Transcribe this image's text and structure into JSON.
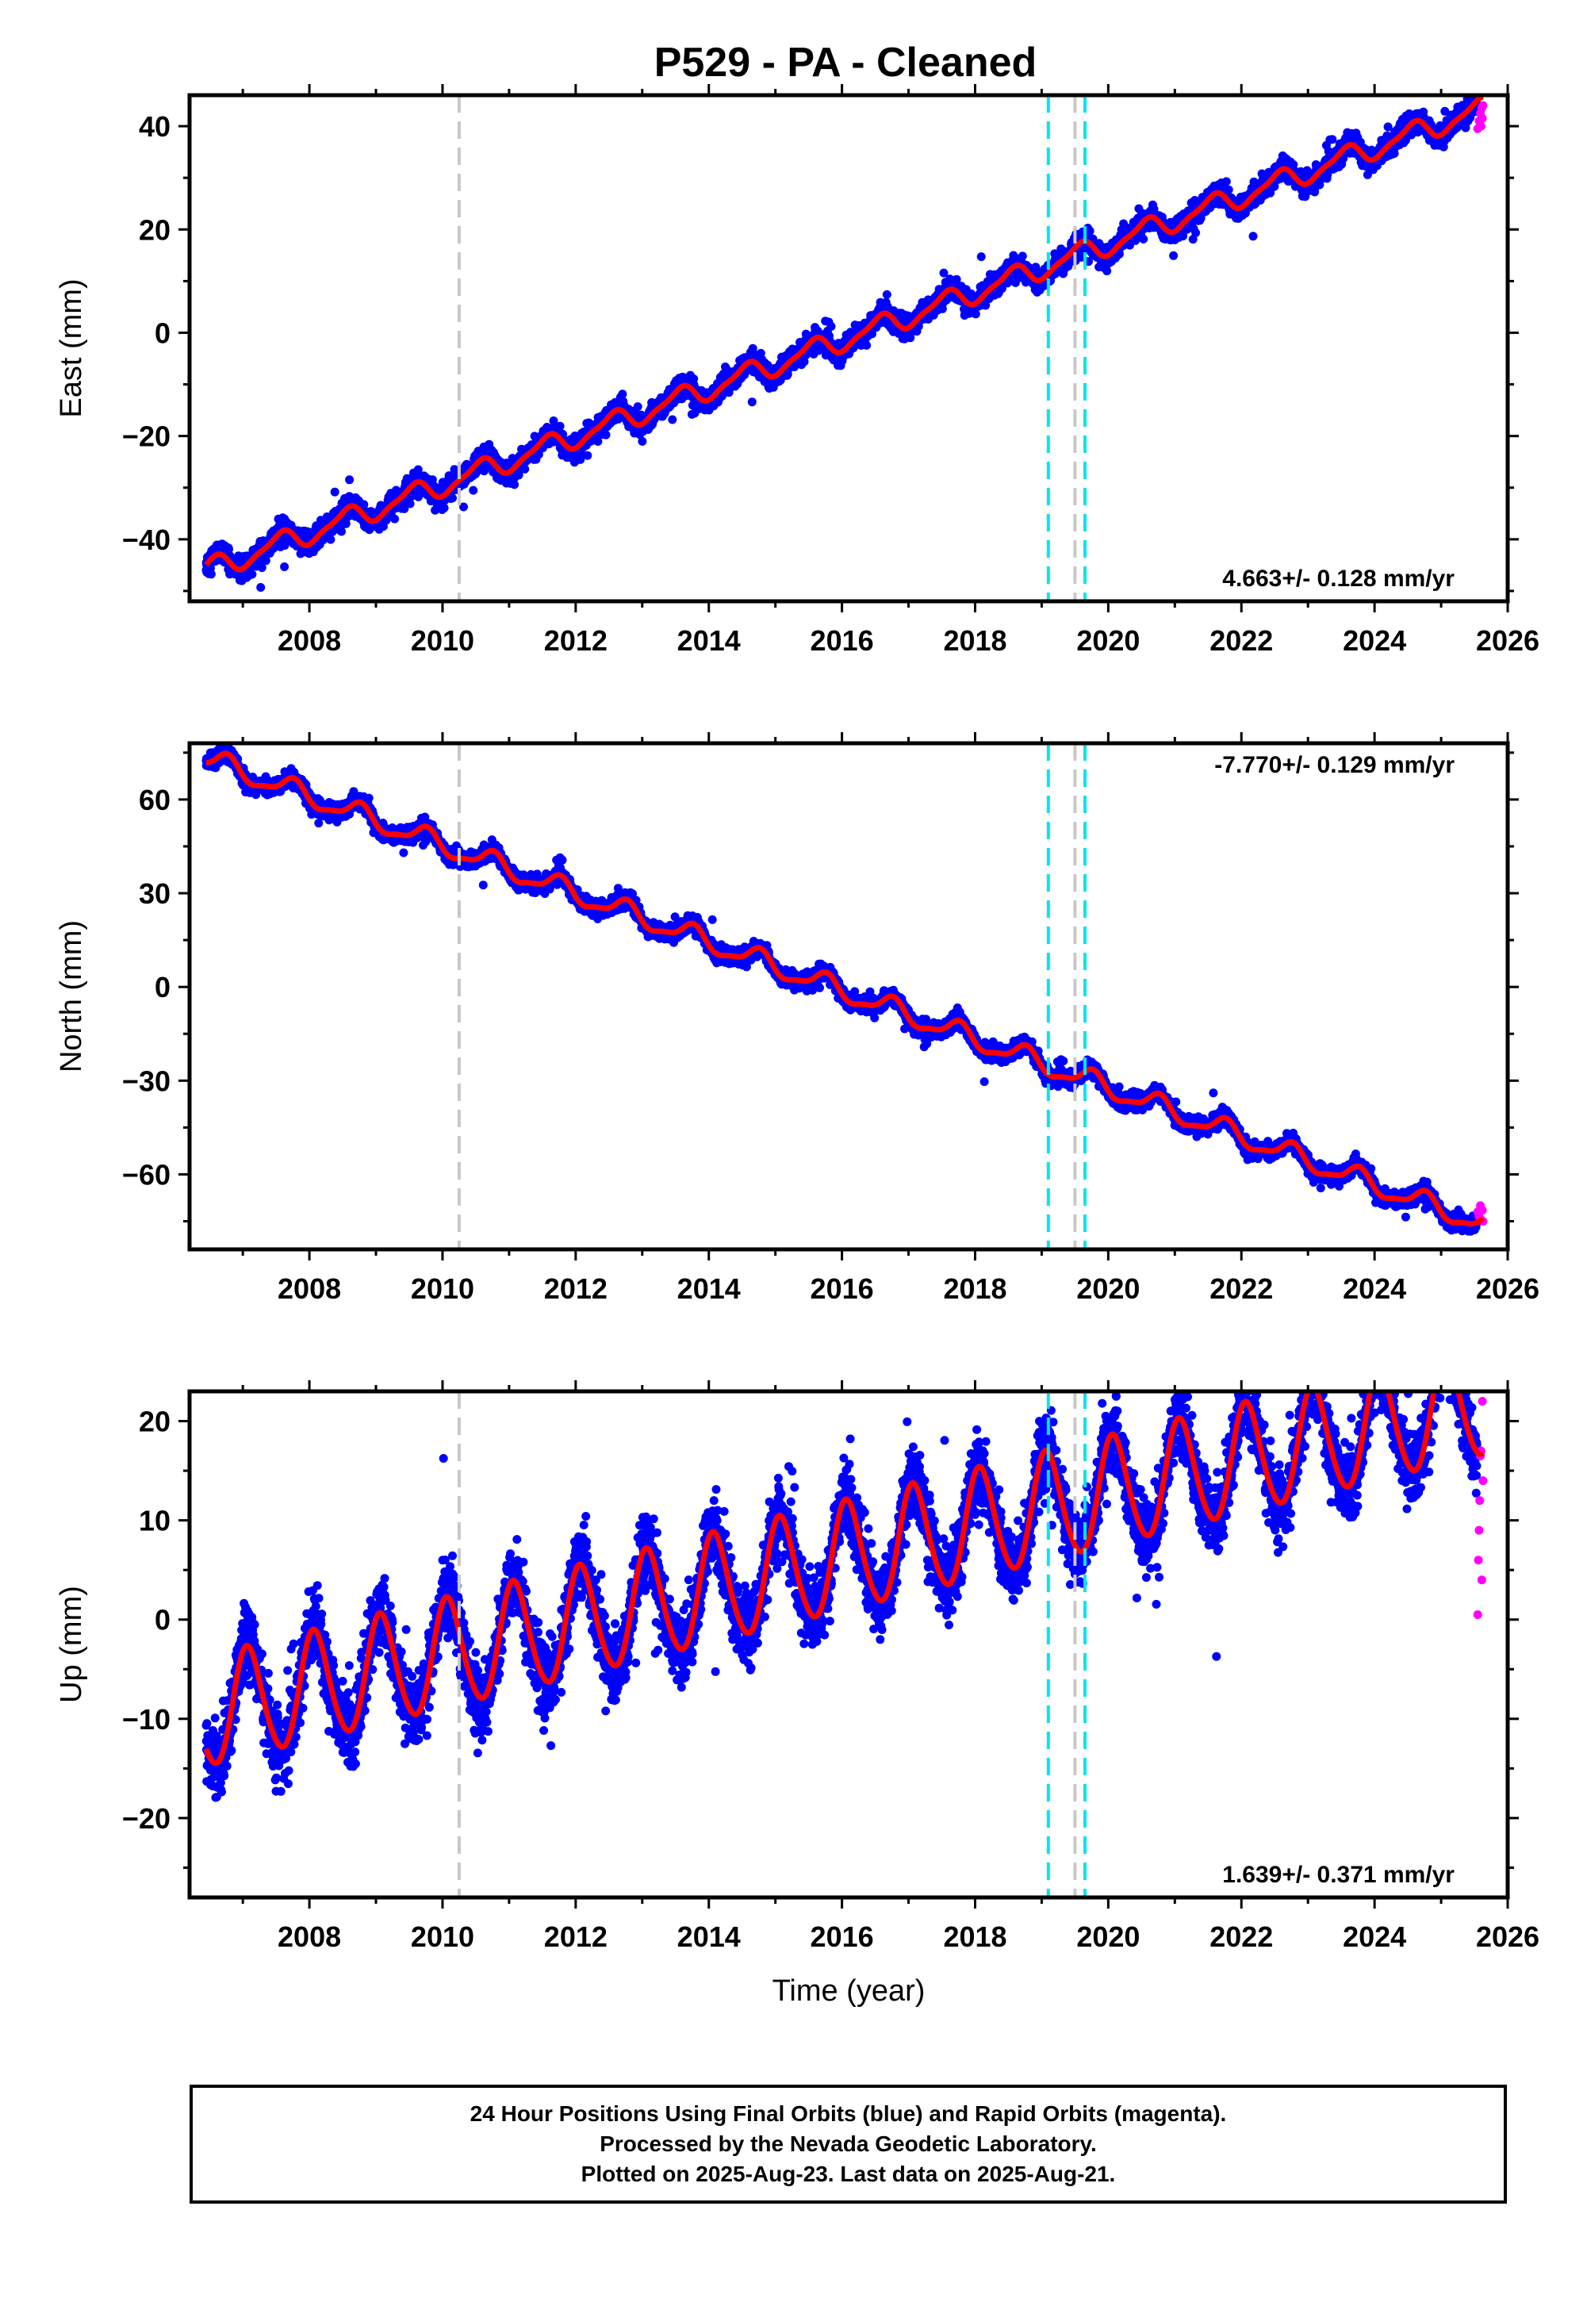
{
  "title": "P529  - PA - Cleaned",
  "footer": {
    "line1": "24 Hour Positions Using Final Orbits (blue) and Rapid Orbits (magenta).",
    "line2": "Processed by the Nevada Geodetic Laboratory.",
    "line3": "Plotted on 2025-Aug-23. Last data on 2025-Aug-21."
  },
  "colors": {
    "final": "#0000ff",
    "rapid": "#ff00ff",
    "model": "#ff0000",
    "antenna_change": "#00e5ee",
    "equipment_change": "#c8c8c8"
  },
  "chart_data": [
    {
      "type": "scatter",
      "panel": "east",
      "ylabel": "East (mm)",
      "xlabel": "",
      "xlim": [
        2006.2,
        2026.0
      ],
      "ylim": [
        -52,
        46
      ],
      "xticks": [
        2008,
        2010,
        2012,
        2014,
        2016,
        2018,
        2020,
        2022,
        2024,
        2026
      ],
      "yticks": [
        -40,
        -20,
        0,
        20,
        40
      ],
      "rate_text": "4.663+/- 0.128 mm/yr",
      "rate_position": "bottom-right",
      "model": {
        "start": 2006.45,
        "offset": -46,
        "rate": 4.663,
        "annual_amp": 2.0,
        "annual_phase": 4.4,
        "semiannual_amp": 0.6,
        "scatter": 1.8,
        "steps": []
      },
      "vertical_lines": [
        {
          "x": 2010.25,
          "kind": "equipment"
        },
        {
          "x": 2019.1,
          "kind": "antenna"
        },
        {
          "x": 2019.5,
          "kind": "equipment"
        },
        {
          "x": 2019.65,
          "kind": "antenna"
        }
      ],
      "rapid_points": [
        [
          2025.55,
          39.5
        ],
        [
          2025.57,
          41
        ],
        [
          2025.59,
          42.5
        ],
        [
          2025.6,
          40
        ],
        [
          2025.61,
          43.5
        ],
        [
          2025.62,
          41.5
        ],
        [
          2025.63,
          44
        ]
      ],
      "grid": false,
      "legend": "none"
    },
    {
      "type": "scatter",
      "panel": "north",
      "ylabel": "North (mm)",
      "xlabel": "",
      "xlim": [
        2006.2,
        2026.0
      ],
      "ylim": [
        -84,
        78
      ],
      "xticks": [
        2008,
        2010,
        2012,
        2014,
        2016,
        2018,
        2020,
        2022,
        2024,
        2026
      ],
      "yticks": [
        -60,
        -30,
        0,
        30,
        60
      ],
      "rate_text": "-7.770+/- 0.129 mm/yr",
      "rate_position": "top-right",
      "model": {
        "start": 2006.45,
        "offset": 73,
        "rate": -7.77,
        "annual_amp": 3.2,
        "annual_phase": 3.2,
        "semiannual_amp": 1.0,
        "scatter": 2.2,
        "steps": []
      },
      "vertical_lines": [
        {
          "x": 2010.25,
          "kind": "equipment"
        },
        {
          "x": 2019.1,
          "kind": "antenna"
        },
        {
          "x": 2019.5,
          "kind": "equipment"
        },
        {
          "x": 2019.65,
          "kind": "antenna"
        }
      ],
      "rapid_points": [
        [
          2025.55,
          -72
        ],
        [
          2025.57,
          -73.5
        ],
        [
          2025.59,
          -70
        ],
        [
          2025.6,
          -74.5
        ],
        [
          2025.62,
          -71.5
        ],
        [
          2025.63,
          -75
        ]
      ],
      "grid": false,
      "legend": "none"
    },
    {
      "type": "scatter",
      "panel": "up",
      "ylabel": "Up (mm)",
      "xlabel": "Time (year)",
      "xlim": [
        2006.2,
        2026.0
      ],
      "ylim": [
        -28,
        23
      ],
      "xticks": [
        2008,
        2010,
        2012,
        2014,
        2016,
        2018,
        2020,
        2022,
        2024,
        2026
      ],
      "yticks": [
        -20,
        -10,
        0,
        10,
        20
      ],
      "rate_text": "1.639+/- 0.371 mm/yr",
      "rate_position": "bottom-right",
      "model": {
        "start": 2006.45,
        "offset": -9.5,
        "rate": 1.639,
        "annual_amp": 5.5,
        "annual_phase": 1.1,
        "semiannual_amp": 0.5,
        "scatter": 3.2,
        "steps": []
      },
      "vertical_lines": [
        {
          "x": 2010.25,
          "kind": "equipment"
        },
        {
          "x": 2019.1,
          "kind": "antenna"
        },
        {
          "x": 2019.5,
          "kind": "equipment"
        },
        {
          "x": 2019.65,
          "kind": "antenna"
        }
      ],
      "rapid_points": [
        [
          2025.55,
          0.5
        ],
        [
          2025.56,
          6
        ],
        [
          2025.57,
          9
        ],
        [
          2025.58,
          12
        ],
        [
          2025.59,
          16.5
        ],
        [
          2025.6,
          17
        ],
        [
          2025.61,
          4
        ],
        [
          2025.62,
          22
        ],
        [
          2025.63,
          14
        ]
      ],
      "grid": false,
      "legend": "none"
    }
  ]
}
